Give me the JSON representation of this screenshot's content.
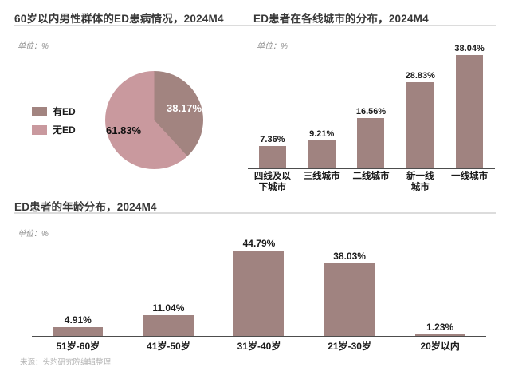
{
  "source": "来源：头豹研究院编辑整理",
  "chart_data": [
    {
      "type": "pie",
      "title": "60岁以内男性群体的ED患病情况，2024M4",
      "unit_label": "单位：%",
      "legend_position": "left",
      "series": [
        {
          "name": "有ED",
          "value": 38.17
        },
        {
          "name": "无ED",
          "value": 61.83
        }
      ],
      "colors": [
        "#a28480",
        "#c9999e"
      ],
      "data_labels": [
        "38.17%",
        "61.83%"
      ],
      "start_angle_deg": 0,
      "direction": "clockwise"
    },
    {
      "type": "bar",
      "title": "ED患者在各线城市的分布，2024M4",
      "unit_label": "单位：%",
      "categories": [
        "四线及以下城市",
        "三线城市",
        "二线城市",
        "新一线城市",
        "一线城市"
      ],
      "tick_labels": [
        "四线及以\n下城市",
        "三线城市",
        "二线城市",
        "新一线\n城市",
        "一线城市"
      ],
      "values": [
        7.36,
        9.21,
        16.56,
        28.83,
        38.04
      ],
      "data_labels": [
        "7.36%",
        "9.21%",
        "16.56%",
        "28.83%",
        "38.04%"
      ],
      "bar_color": "#a08380",
      "ylim": [
        0,
        42
      ],
      "grid": false,
      "value_labels_on_top": true
    },
    {
      "type": "bar",
      "title": "ED患者的年龄分布，2024M4",
      "unit_label": "单位：%",
      "categories": [
        "51岁-60岁",
        "41岁-50岁",
        "31岁-40岁",
        "21岁-30岁",
        "20岁以内"
      ],
      "values": [
        4.91,
        11.04,
        44.79,
        38.03,
        1.23
      ],
      "data_labels": [
        "4.91%",
        "11.04%",
        "44.79%",
        "38.03%",
        "1.23%"
      ],
      "bar_color": "#a08380",
      "ylim": [
        0,
        50
      ],
      "grid": false,
      "value_labels_on_top": true
    }
  ]
}
